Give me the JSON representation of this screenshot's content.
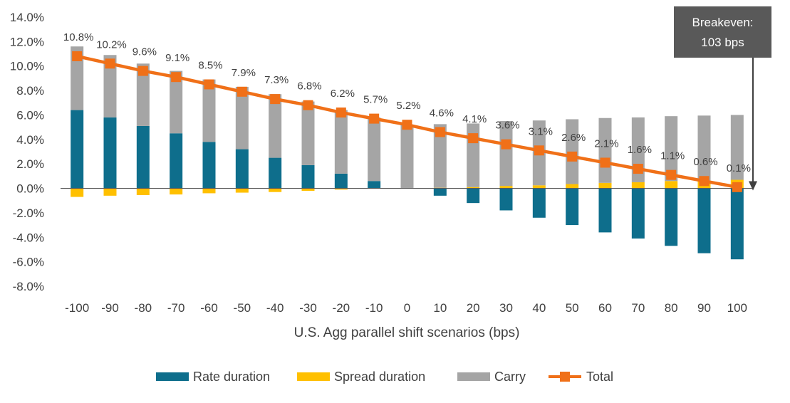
{
  "chart_data": {
    "type": "bar",
    "stacked": true,
    "xlabel": "U.S. Agg parallel shift scenarios (bps)",
    "ylabel": "",
    "ylim": [
      -8,
      14
    ],
    "y_ticks": [
      "14.0%",
      "12.0%",
      "10.0%",
      "8.0%",
      "6.0%",
      "4.0%",
      "2.0%",
      "0.0%",
      "-2.0%",
      "-4.0%",
      "-6.0%",
      "-8.0%"
    ],
    "y_tick_values": [
      14,
      12,
      10,
      8,
      6,
      4,
      2,
      0,
      -2,
      -4,
      -6,
      -8
    ],
    "categories": [
      "-100",
      "-90",
      "-80",
      "-70",
      "-60",
      "-50",
      "-40",
      "-30",
      "-20",
      "-10",
      "0",
      "10",
      "20",
      "30",
      "40",
      "50",
      "60",
      "70",
      "80",
      "90",
      "100"
    ],
    "series": [
      {
        "name": "Rate duration",
        "color": "#0E6E8C",
        "values": [
          6.4,
          5.8,
          5.1,
          4.5,
          3.8,
          3.2,
          2.5,
          1.9,
          1.2,
          0.6,
          0.0,
          -0.6,
          -1.2,
          -1.8,
          -2.4,
          -3.0,
          -3.6,
          -4.1,
          -4.7,
          -5.3,
          -5.8
        ]
      },
      {
        "name": "Spread duration",
        "color": "#FFC000",
        "values": [
          -0.7,
          -0.6,
          -0.55,
          -0.5,
          -0.4,
          -0.35,
          -0.3,
          -0.2,
          -0.1,
          0.0,
          0.0,
          0.05,
          0.1,
          0.2,
          0.25,
          0.35,
          0.45,
          0.5,
          0.6,
          0.65,
          0.7
        ]
      },
      {
        "name": "Carry",
        "color": "#A5A5A5",
        "values": [
          5.2,
          5.1,
          5.1,
          5.1,
          5.1,
          5.1,
          5.2,
          5.2,
          5.2,
          5.2,
          5.2,
          5.2,
          5.2,
          5.3,
          5.3,
          5.3,
          5.3,
          5.3,
          5.3,
          5.3,
          5.3
        ]
      },
      {
        "name": "Total",
        "type": "line",
        "color": "#F07018",
        "values": [
          10.8,
          10.2,
          9.6,
          9.1,
          8.5,
          7.9,
          7.3,
          6.8,
          6.2,
          5.7,
          5.2,
          4.6,
          4.1,
          3.6,
          3.1,
          2.6,
          2.1,
          1.6,
          1.1,
          0.6,
          0.1
        ]
      }
    ],
    "data_labels": [
      "10.8%",
      "10.2%",
      "9.6%",
      "9.1%",
      "8.5%",
      "7.9%",
      "7.3%",
      "6.8%",
      "6.2%",
      "5.7%",
      "5.2%",
      "4.6%",
      "4.1%",
      "3.6%",
      "3.1%",
      "2.6%",
      "2.1%",
      "1.6%",
      "1.1%",
      "0.6%",
      "0.1%"
    ],
    "annotation": {
      "line1": "Breakeven:",
      "line2": "103 bps",
      "color": "#595959"
    },
    "legend": {
      "position": "bottom"
    },
    "grid": false
  }
}
